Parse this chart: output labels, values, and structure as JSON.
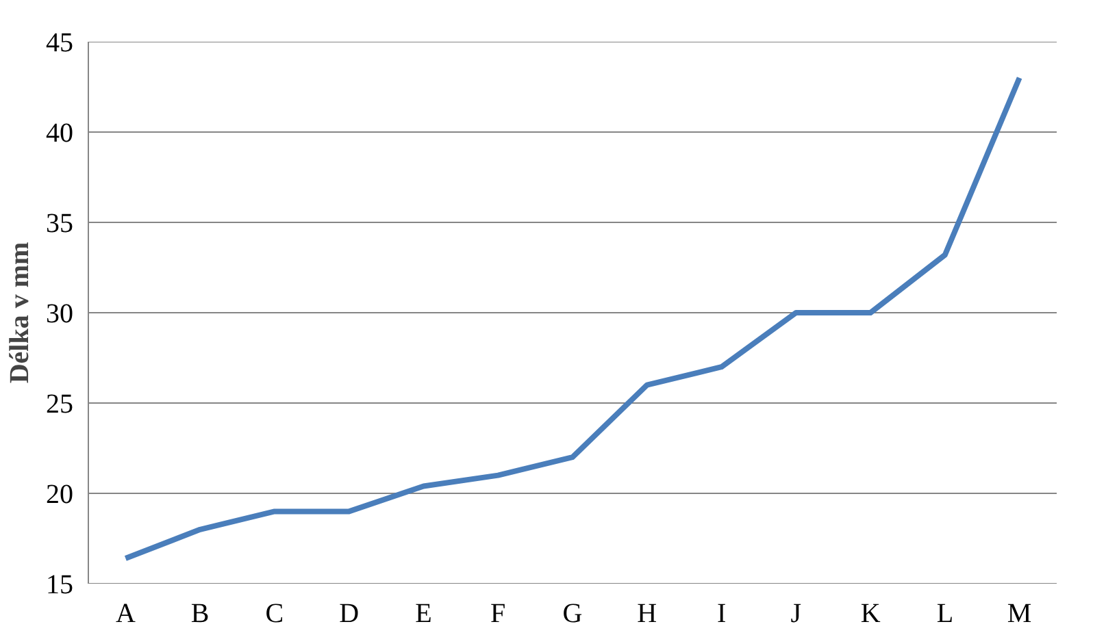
{
  "chart_data": {
    "type": "line",
    "ylabel": "Délka v mm",
    "categories": [
      "A",
      "B",
      "C",
      "D",
      "E",
      "F",
      "G",
      "H",
      "I",
      "J",
      "K",
      "L",
      "M"
    ],
    "series": [
      {
        "color": "#4a7ebb",
        "values": [
          16.4,
          18,
          19,
          19,
          20.4,
          21,
          22,
          26,
          27,
          30,
          30,
          33.2,
          43
        ]
      }
    ],
    "ylim": [
      15,
      45
    ],
    "yticks": [
      15,
      20,
      25,
      30,
      35,
      40,
      45
    ],
    "grid": "y",
    "marker": "none",
    "line_style": "solid"
  }
}
